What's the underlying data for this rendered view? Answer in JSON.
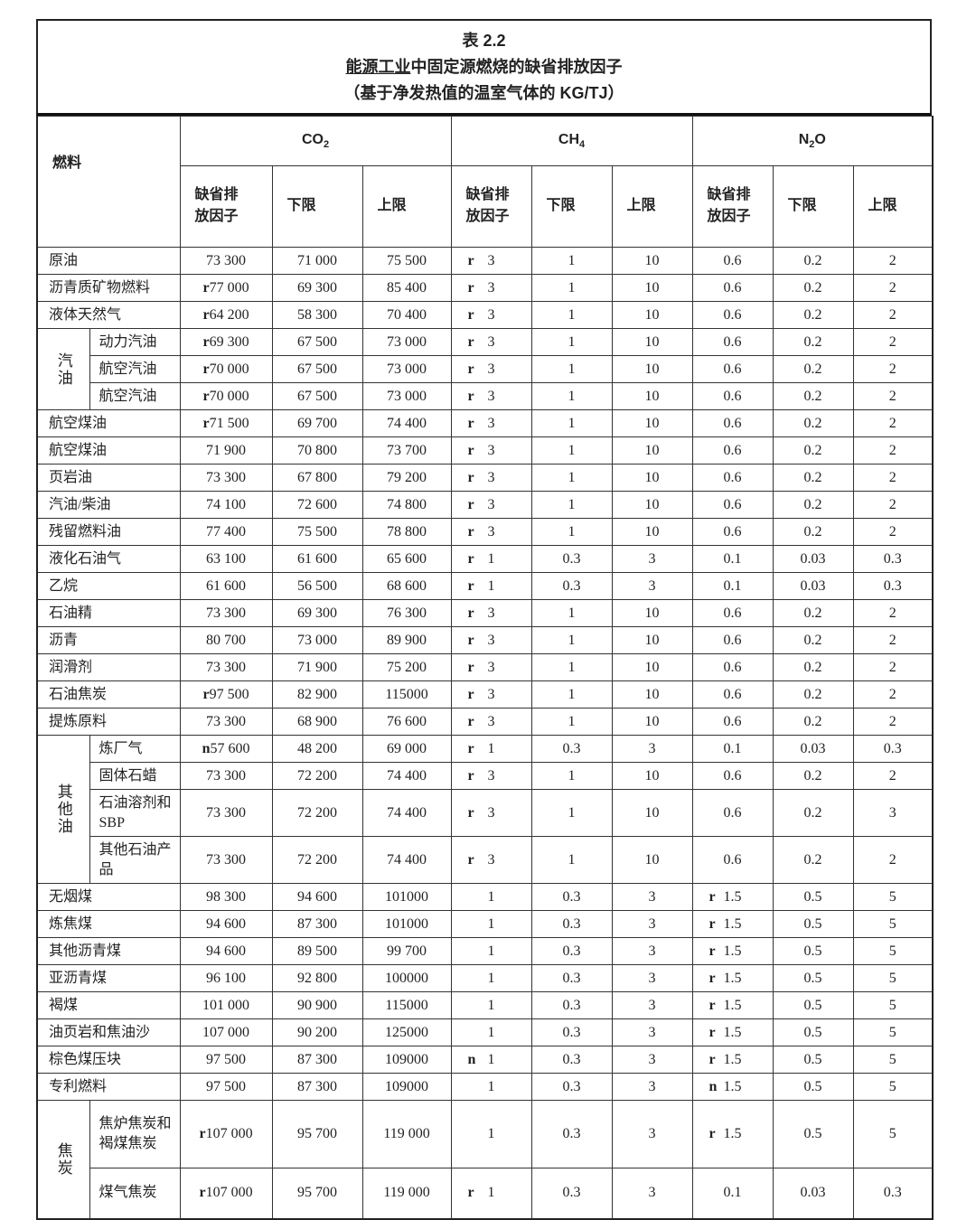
{
  "title": {
    "table_no": "表 2.2",
    "main_underlined": "能源工业",
    "main_rest": "中固定源燃烧的缺省排放因子",
    "subtitle": "（基于净发热值的温室气体的 KG/TJ）"
  },
  "header": {
    "fuel": "燃料",
    "co2": "CO",
    "co2_sub": "2",
    "ch4": "CH",
    "ch4_sub": "4",
    "n2o_a": "N",
    "n2o_sub": "2",
    "n2o_b": "O",
    "default_a": "缺省排",
    "default_b": "放因子",
    "lower": "下限",
    "upper": "上限"
  },
  "groups": {
    "gasoline": "汽油",
    "other_oil": "其他油",
    "coke": "焦炭"
  },
  "rows": [
    {
      "name": "原油",
      "co2": [
        "",
        "73 300"
      ],
      "co2_lo": "71 000",
      "co2_hi": "75 500",
      "ch4": [
        "r",
        "3"
      ],
      "ch4_lo": "1",
      "ch4_hi": "10",
      "n2o": [
        "",
        "0.6"
      ],
      "n2o_lo": "0.2",
      "n2o_hi": "2"
    },
    {
      "name": "沥青质矿物燃料",
      "co2": [
        "r",
        "77 000"
      ],
      "co2_lo": "69 300",
      "co2_hi": "85 400",
      "ch4": [
        "r",
        "3"
      ],
      "ch4_lo": "1",
      "ch4_hi": "10",
      "n2o": [
        "",
        "0.6"
      ],
      "n2o_lo": "0.2",
      "n2o_hi": "2"
    },
    {
      "name": "液体天然气",
      "co2": [
        "r",
        "64 200"
      ],
      "co2_lo": "58 300",
      "co2_hi": "70 400",
      "ch4": [
        "r",
        "3"
      ],
      "ch4_lo": "1",
      "ch4_hi": "10",
      "n2o": [
        "",
        "0.6"
      ],
      "n2o_lo": "0.2",
      "n2o_hi": "2"
    },
    {
      "group": "gasoline",
      "span": 3,
      "name": "动力汽油",
      "co2": [
        "r",
        "69 300"
      ],
      "co2_lo": "67 500",
      "co2_hi": "73 000",
      "ch4": [
        "r",
        "3"
      ],
      "ch4_lo": "1",
      "ch4_hi": "10",
      "n2o": [
        "",
        "0.6"
      ],
      "n2o_lo": "0.2",
      "n2o_hi": "2"
    },
    {
      "ingroup": true,
      "name": "航空汽油",
      "co2": [
        "r",
        "70 000"
      ],
      "co2_lo": "67 500",
      "co2_hi": "73 000",
      "ch4": [
        "r",
        "3"
      ],
      "ch4_lo": "1",
      "ch4_hi": "10",
      "n2o": [
        "",
        "0.6"
      ],
      "n2o_lo": "0.2",
      "n2o_hi": "2"
    },
    {
      "ingroup": true,
      "name": "航空汽油",
      "co2": [
        "r",
        "70 000"
      ],
      "co2_lo": "67 500",
      "co2_hi": "73 000",
      "ch4": [
        "r",
        "3"
      ],
      "ch4_lo": "1",
      "ch4_hi": "10",
      "n2o": [
        "",
        "0.6"
      ],
      "n2o_lo": "0.2",
      "n2o_hi": "2"
    },
    {
      "name": "航空煤油",
      "co2": [
        "r",
        "71 500"
      ],
      "co2_lo": "69 700",
      "co2_hi": "74 400",
      "ch4": [
        "r",
        "3"
      ],
      "ch4_lo": "1",
      "ch4_hi": "10",
      "n2o": [
        "",
        "0.6"
      ],
      "n2o_lo": "0.2",
      "n2o_hi": "2"
    },
    {
      "name": "航空煤油",
      "co2": [
        "",
        "71 900"
      ],
      "co2_lo": "70 800",
      "co2_hi": "73 700",
      "ch4": [
        "r",
        "3"
      ],
      "ch4_lo": "1",
      "ch4_hi": "10",
      "n2o": [
        "",
        "0.6"
      ],
      "n2o_lo": "0.2",
      "n2o_hi": "2"
    },
    {
      "name": "页岩油",
      "co2": [
        "",
        "73 300"
      ],
      "co2_lo": "67 800",
      "co2_hi": "79 200",
      "ch4": [
        "r",
        "3"
      ],
      "ch4_lo": "1",
      "ch4_hi": "10",
      "n2o": [
        "",
        "0.6"
      ],
      "n2o_lo": "0.2",
      "n2o_hi": "2"
    },
    {
      "name": "汽油/柴油",
      "co2": [
        "",
        "74 100"
      ],
      "co2_lo": "72 600",
      "co2_hi": "74 800",
      "ch4": [
        "r",
        "3"
      ],
      "ch4_lo": "1",
      "ch4_hi": "10",
      "n2o": [
        "",
        "0.6"
      ],
      "n2o_lo": "0.2",
      "n2o_hi": "2"
    },
    {
      "name": "残留燃料油",
      "co2": [
        "",
        "77 400"
      ],
      "co2_lo": "75 500",
      "co2_hi": "78 800",
      "ch4": [
        "r",
        "3"
      ],
      "ch4_lo": "1",
      "ch4_hi": "10",
      "n2o": [
        "",
        "0.6"
      ],
      "n2o_lo": "0.2",
      "n2o_hi": "2"
    },
    {
      "name": "液化石油气",
      "co2": [
        "",
        "63 100"
      ],
      "co2_lo": "61 600",
      "co2_hi": "65 600",
      "ch4": [
        "r",
        "1"
      ],
      "ch4_lo": "0.3",
      "ch4_hi": "3",
      "n2o": [
        "",
        "0.1"
      ],
      "n2o_lo": "0.03",
      "n2o_hi": "0.3"
    },
    {
      "name": "乙烷",
      "co2": [
        "",
        "61 600"
      ],
      "co2_lo": "56 500",
      "co2_hi": "68 600",
      "ch4": [
        "r",
        "1"
      ],
      "ch4_lo": "0.3",
      "ch4_hi": "3",
      "n2o": [
        "",
        "0.1"
      ],
      "n2o_lo": "0.03",
      "n2o_hi": "0.3"
    },
    {
      "name": "石油精",
      "co2": [
        "",
        "73 300"
      ],
      "co2_lo": "69 300",
      "co2_hi": "76 300",
      "ch4": [
        "r",
        "3"
      ],
      "ch4_lo": "1",
      "ch4_hi": "10",
      "n2o": [
        "",
        "0.6"
      ],
      "n2o_lo": "0.2",
      "n2o_hi": "2"
    },
    {
      "name": "沥青",
      "co2": [
        "",
        "80 700"
      ],
      "co2_lo": "73 000",
      "co2_hi": "89 900",
      "ch4": [
        "r",
        "3"
      ],
      "ch4_lo": "1",
      "ch4_hi": "10",
      "n2o": [
        "",
        "0.6"
      ],
      "n2o_lo": "0.2",
      "n2o_hi": "2"
    },
    {
      "name": "润滑剂",
      "co2": [
        "",
        "73 300"
      ],
      "co2_lo": "71 900",
      "co2_hi": "75 200",
      "ch4": [
        "r",
        "3"
      ],
      "ch4_lo": "1",
      "ch4_hi": "10",
      "n2o": [
        "",
        "0.6"
      ],
      "n2o_lo": "0.2",
      "n2o_hi": "2"
    },
    {
      "name": "石油焦炭",
      "co2": [
        "r",
        "97 500"
      ],
      "co2_lo": "82 900",
      "co2_hi": "115000",
      "ch4": [
        "r",
        "3"
      ],
      "ch4_lo": "1",
      "ch4_hi": "10",
      "n2o": [
        "",
        "0.6"
      ],
      "n2o_lo": "0.2",
      "n2o_hi": "2"
    },
    {
      "name": "提炼原料",
      "co2": [
        "",
        "73 300"
      ],
      "co2_lo": "68 900",
      "co2_hi": "76 600",
      "ch4": [
        "r",
        "3"
      ],
      "ch4_lo": "1",
      "ch4_hi": "10",
      "n2o": [
        "",
        "0.6"
      ],
      "n2o_lo": "0.2",
      "n2o_hi": "2"
    },
    {
      "group": "other_oil",
      "span": 4,
      "name": "炼厂气",
      "co2": [
        "n",
        "57 600"
      ],
      "co2_lo": "48 200",
      "co2_hi": "69 000",
      "ch4": [
        "r",
        "1"
      ],
      "ch4_lo": "0.3",
      "ch4_hi": "3",
      "n2o": [
        "",
        "0.1"
      ],
      "n2o_lo": "0.03",
      "n2o_hi": "0.3"
    },
    {
      "ingroup": true,
      "name": "固体石蜡",
      "co2": [
        "",
        "73 300"
      ],
      "co2_lo": "72 200",
      "co2_hi": "74 400",
      "ch4": [
        "r",
        "3"
      ],
      "ch4_lo": "1",
      "ch4_hi": "10",
      "n2o": [
        "",
        "0.6"
      ],
      "n2o_lo": "0.2",
      "n2o_hi": "2"
    },
    {
      "ingroup": true,
      "tall": "52px",
      "name": "石油溶剂和 SBP",
      "co2": [
        "",
        "73 300"
      ],
      "co2_lo": "72 200",
      "co2_hi": "74 400",
      "ch4": [
        "r",
        "3"
      ],
      "ch4_lo": "1",
      "ch4_hi": "10",
      "n2o": [
        "",
        "0.6"
      ],
      "n2o_lo": "0.2",
      "n2o_hi": "3"
    },
    {
      "ingroup": true,
      "tall": "52px",
      "name": "其他石油产品",
      "co2": [
        "",
        "73 300"
      ],
      "co2_lo": "72 200",
      "co2_hi": "74 400",
      "ch4": [
        "r",
        "3"
      ],
      "ch4_lo": "1",
      "ch4_hi": "10",
      "n2o": [
        "",
        "0.6"
      ],
      "n2o_lo": "0.2",
      "n2o_hi": "2"
    },
    {
      "name": "无烟煤",
      "co2": [
        "",
        "98 300"
      ],
      "co2_lo": "94 600",
      "co2_hi": "101000",
      "ch4": [
        "",
        "1"
      ],
      "ch4_lo": "0.3",
      "ch4_hi": "3",
      "n2o": [
        "r",
        "1.5"
      ],
      "n2o_lo": "0.5",
      "n2o_hi": "5"
    },
    {
      "name": "炼焦煤",
      "co2": [
        "",
        "94 600"
      ],
      "co2_lo": "87 300",
      "co2_hi": "101000",
      "ch4": [
        "",
        "1"
      ],
      "ch4_lo": "0.3",
      "ch4_hi": "3",
      "n2o": [
        "r",
        "1.5"
      ],
      "n2o_lo": "0.5",
      "n2o_hi": "5"
    },
    {
      "name": "其他沥青煤",
      "co2": [
        "",
        "94 600"
      ],
      "co2_lo": "89 500",
      "co2_hi": "99 700",
      "ch4": [
        "",
        "1"
      ],
      "ch4_lo": "0.3",
      "ch4_hi": "3",
      "n2o": [
        "r",
        "1.5"
      ],
      "n2o_lo": "0.5",
      "n2o_hi": "5"
    },
    {
      "name": "亚沥青煤",
      "co2": [
        "",
        "96 100"
      ],
      "co2_lo": "92 800",
      "co2_hi": "100000",
      "ch4": [
        "",
        "1"
      ],
      "ch4_lo": "0.3",
      "ch4_hi": "3",
      "n2o": [
        "r",
        "1.5"
      ],
      "n2o_lo": "0.5",
      "n2o_hi": "5"
    },
    {
      "name": "褐煤",
      "co2": [
        "",
        "101 000"
      ],
      "co2_lo": "90 900",
      "co2_hi": "115000",
      "ch4": [
        "",
        "1"
      ],
      "ch4_lo": "0.3",
      "ch4_hi": "3",
      "n2o": [
        "r",
        "1.5"
      ],
      "n2o_lo": "0.5",
      "n2o_hi": "5"
    },
    {
      "name": "油页岩和焦油沙",
      "co2": [
        "",
        "107 000"
      ],
      "co2_lo": "90 200",
      "co2_hi": "125000",
      "ch4": [
        "",
        "1"
      ],
      "ch4_lo": "0.3",
      "ch4_hi": "3",
      "n2o": [
        "r",
        "1.5"
      ],
      "n2o_lo": "0.5",
      "n2o_hi": "5"
    },
    {
      "name": "棕色煤压块",
      "co2": [
        "",
        "97 500"
      ],
      "co2_lo": "87 300",
      "co2_hi": "109000",
      "ch4": [
        "n",
        "1"
      ],
      "ch4_lo": "0.3",
      "ch4_hi": "3",
      "n2o": [
        "r",
        "1.5"
      ],
      "n2o_lo": "0.5",
      "n2o_hi": "5"
    },
    {
      "name": "专利燃料",
      "co2": [
        "",
        "97 500"
      ],
      "co2_lo": "87 300",
      "co2_hi": "109000",
      "ch4": [
        "",
        "1"
      ],
      "ch4_lo": "0.3",
      "ch4_hi": "3",
      "n2o": [
        "n",
        "1.5"
      ],
      "n2o_lo": "0.5",
      "n2o_hi": "5"
    },
    {
      "group": "coke",
      "span": 2,
      "tall": "75px",
      "name": "焦炉焦炭和褐煤焦炭",
      "co2": [
        "r",
        "107 000"
      ],
      "co2_lo": "95 700",
      "co2_hi": "119 000",
      "ch4": [
        "",
        "1"
      ],
      "ch4_lo": "0.3",
      "ch4_hi": "3",
      "n2o": [
        "r",
        "1.5"
      ],
      "n2o_lo": "0.5",
      "n2o_hi": "5"
    },
    {
      "ingroup": true,
      "tall": "56px",
      "name": "煤气焦炭",
      "co2": [
        "r",
        "107 000"
      ],
      "co2_lo": "95 700",
      "co2_hi": "119 000",
      "ch4": [
        "r",
        "1"
      ],
      "ch4_lo": "0.3",
      "ch4_hi": "3",
      "n2o": [
        "",
        "0.1"
      ],
      "n2o_lo": "0.03",
      "n2o_hi": "0.3"
    }
  ]
}
